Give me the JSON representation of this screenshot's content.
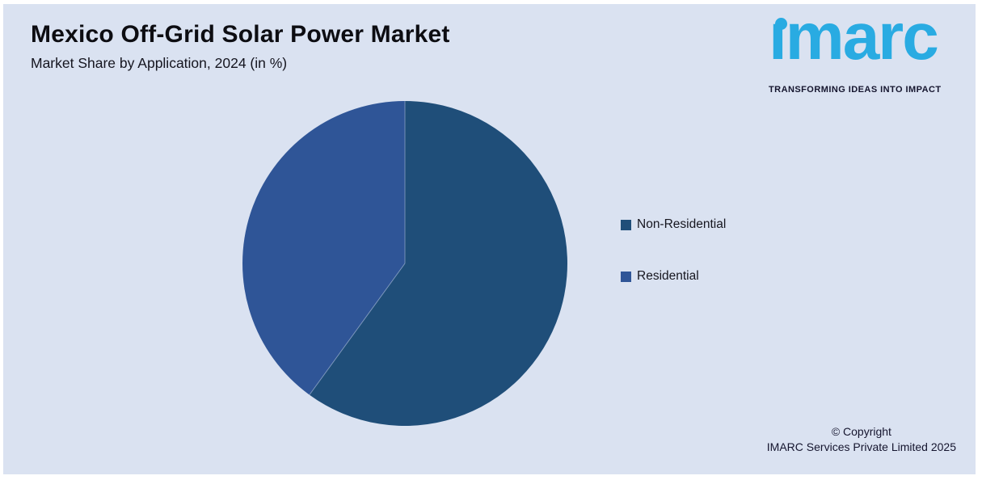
{
  "header": {
    "title": "Mexico Off-Grid Solar Power Market",
    "subtitle": "Market Share by Application, 2024 (in %)"
  },
  "logo": {
    "brand": "imarc",
    "tagline": "TRANSFORMING IDEAS INTO IMPACT",
    "brand_color": "#29abe2"
  },
  "chart_data": {
    "type": "pie",
    "title": "Mexico Off-Grid Solar Power Market",
    "subtitle": "Market Share by Application, 2024 (in %)",
    "unit": "%",
    "categories": [
      "Non-Residential",
      "Residential"
    ],
    "series": [
      {
        "name": "Non-Residential",
        "value": 60,
        "color": "#1f4e79"
      },
      {
        "name": "Residential",
        "value": 40,
        "color": "#2f5597"
      }
    ],
    "values_estimated_from_angles": true,
    "start_angle_deg": 0,
    "direction": "clockwise",
    "legend_position": "right",
    "data_labels_shown": false
  },
  "footer": {
    "copyright_line1": "© Copyright",
    "copyright_line2": "IMARC Services Private Limited 2025"
  },
  "colors": {
    "background": "#dae2f1",
    "frame": "#ffffff",
    "title_text": "#0d0d12",
    "body_text": "#15152e",
    "slice_divider": "#d0dbee"
  }
}
